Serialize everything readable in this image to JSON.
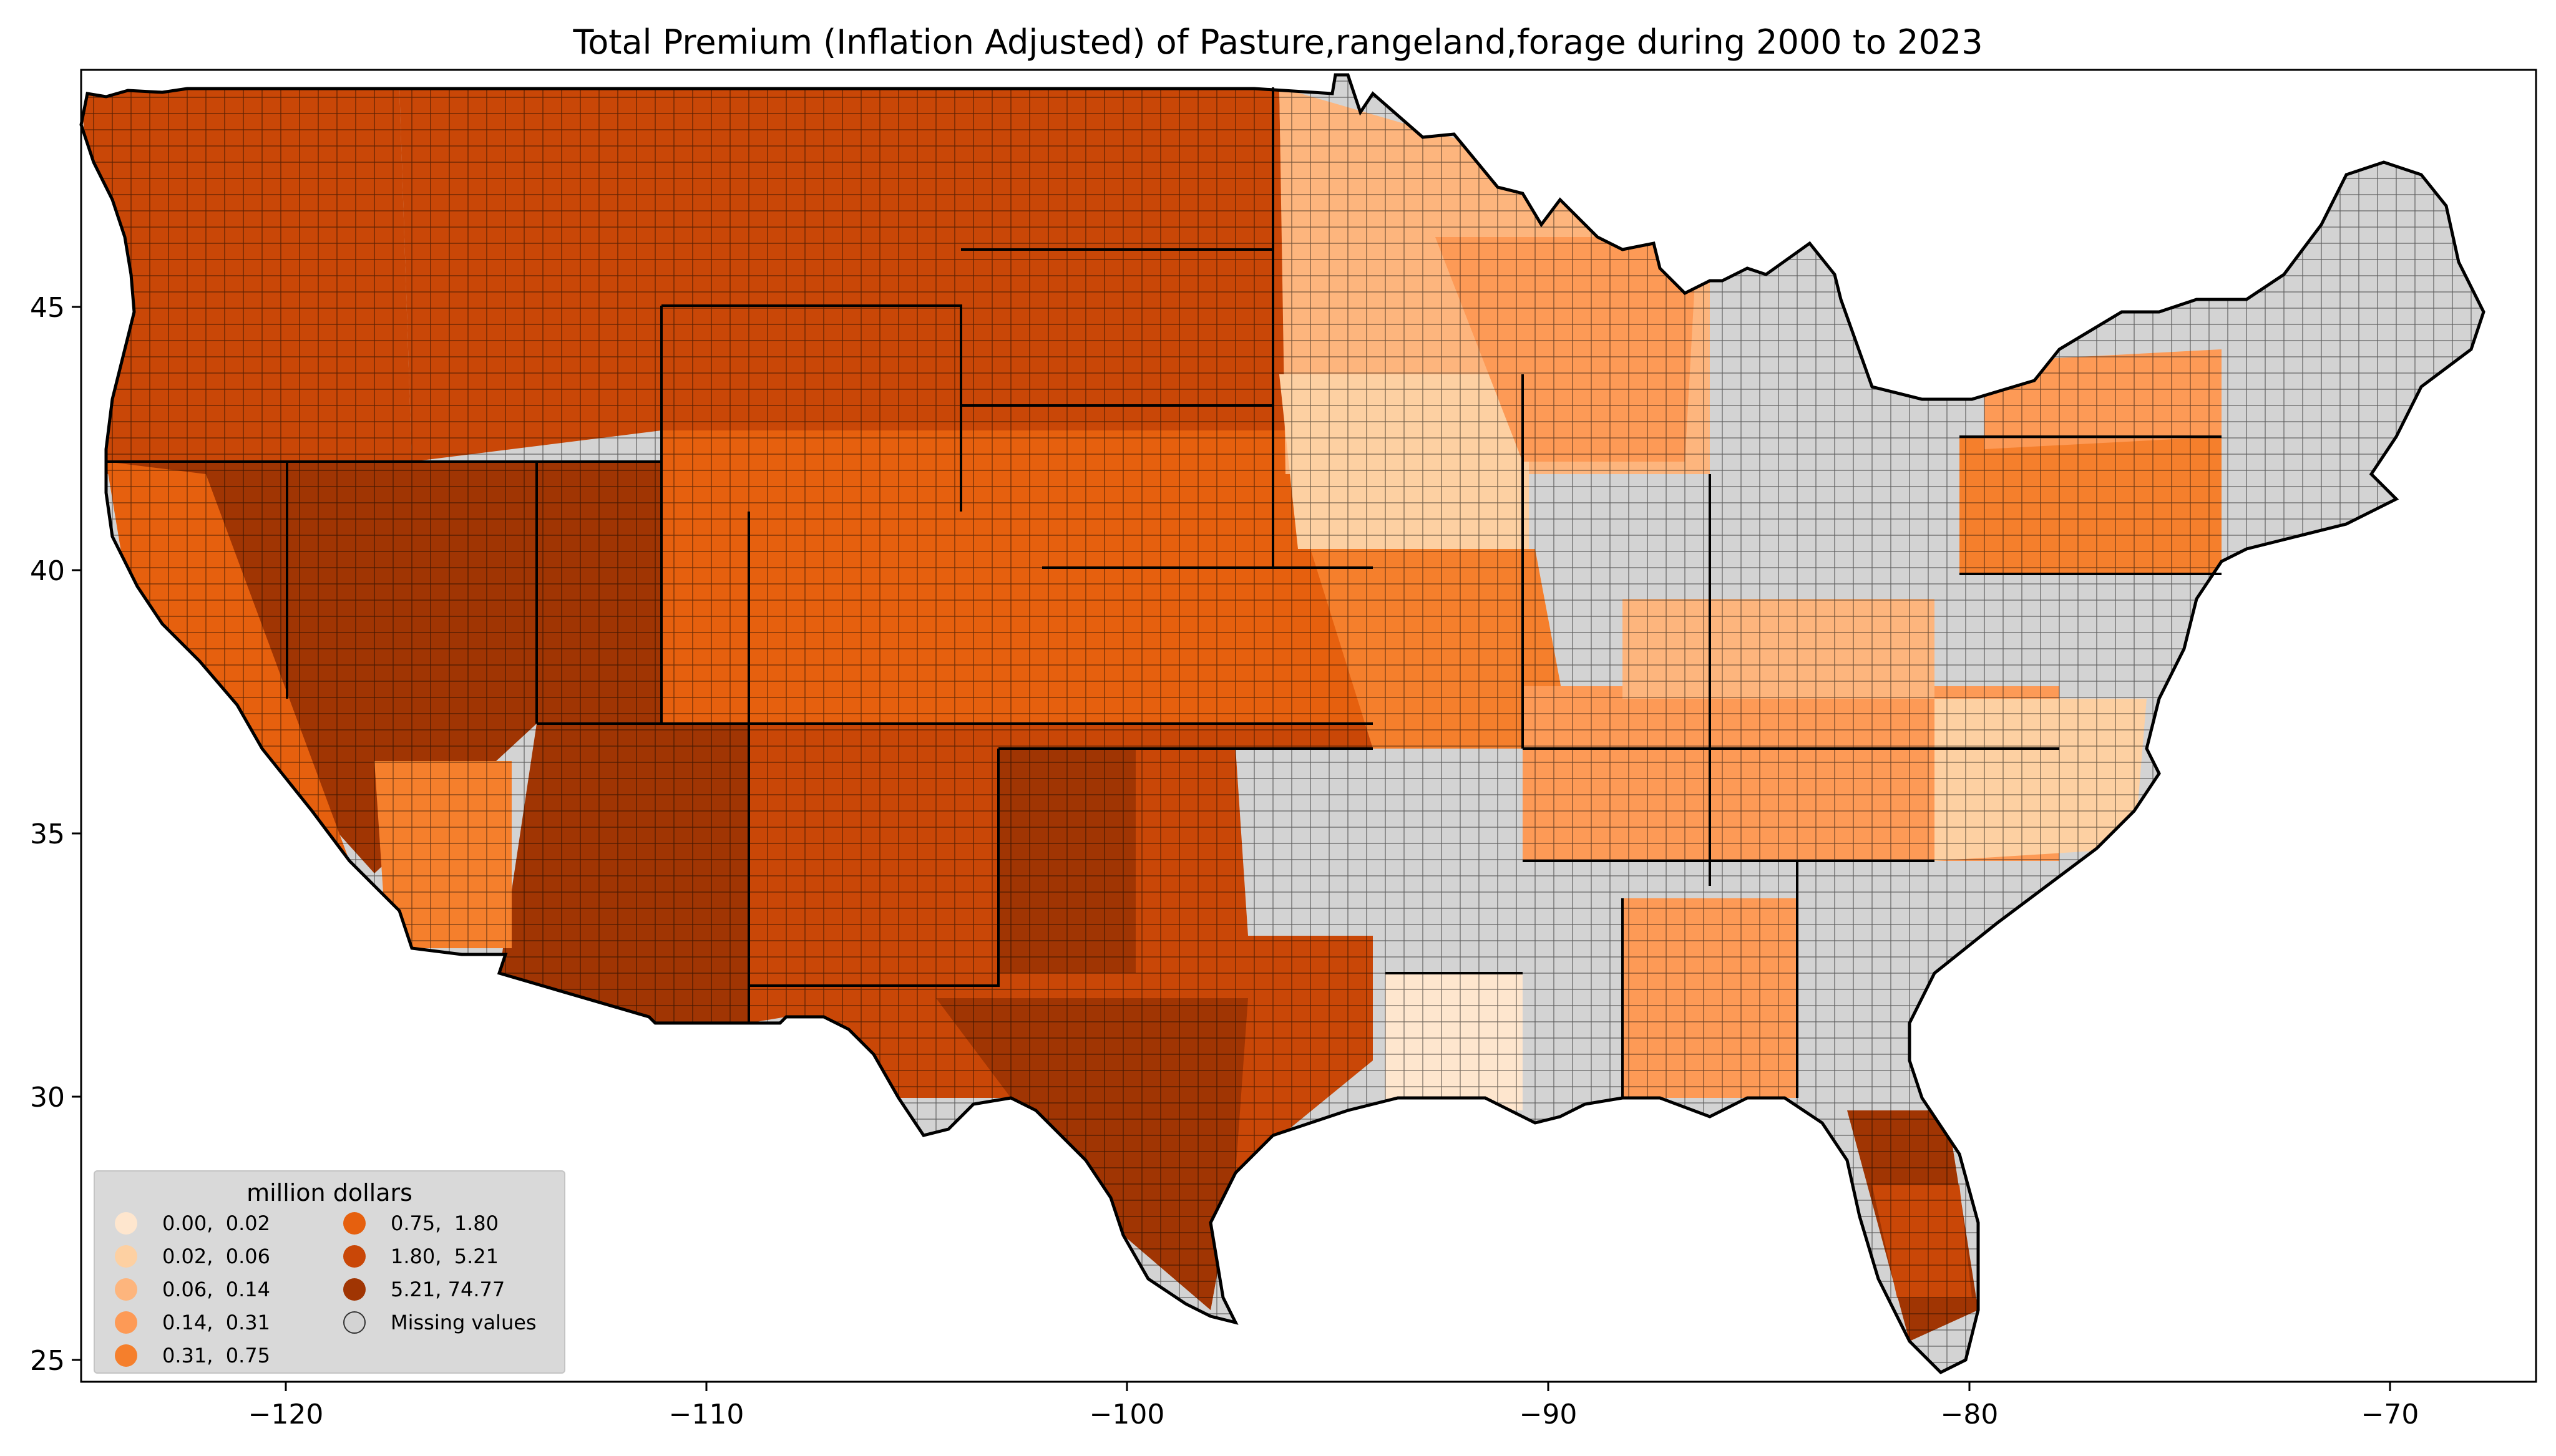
{
  "title": "Total  Premium  (Inflation Adjusted) of Pasture,rangeland,forage during 2000 to 2023",
  "axes": {
    "x_ticks": [
      "−120",
      "−110",
      "−100",
      "−90",
      "−80",
      "−70"
    ],
    "y_ticks": [
      "25",
      "30",
      "35",
      "40",
      "45"
    ],
    "xlim": [
      -124.8,
      -66.5
    ],
    "ylim": [
      24.5,
      49.6
    ]
  },
  "legend": {
    "title": "million dollars",
    "placement": "bottom-left",
    "items": [
      {
        "label": "0.00,  0.02",
        "color": "#fee6ce"
      },
      {
        "label": "0.02,  0.06",
        "color": "#fdd0a2"
      },
      {
        "label": "0.06,  0.14",
        "color": "#fdb57d"
      },
      {
        "label": "0.14,  0.31",
        "color": "#fd9a56"
      },
      {
        "label": "0.31,  0.75",
        "color": "#f57f2c"
      },
      {
        "label": "0.75,  1.80",
        "color": "#e6600e"
      },
      {
        "label": "1.80,  5.21",
        "color": "#c94707"
      },
      {
        "label": "5.21, 74.77",
        "color": "#a03503"
      },
      {
        "label": "Missing values",
        "color": "#d3d3d3"
      }
    ]
  },
  "colors": {
    "missing": "#d3d3d3",
    "county_border": "#000000",
    "state_border": "#000000",
    "background": "#ffffff"
  }
}
